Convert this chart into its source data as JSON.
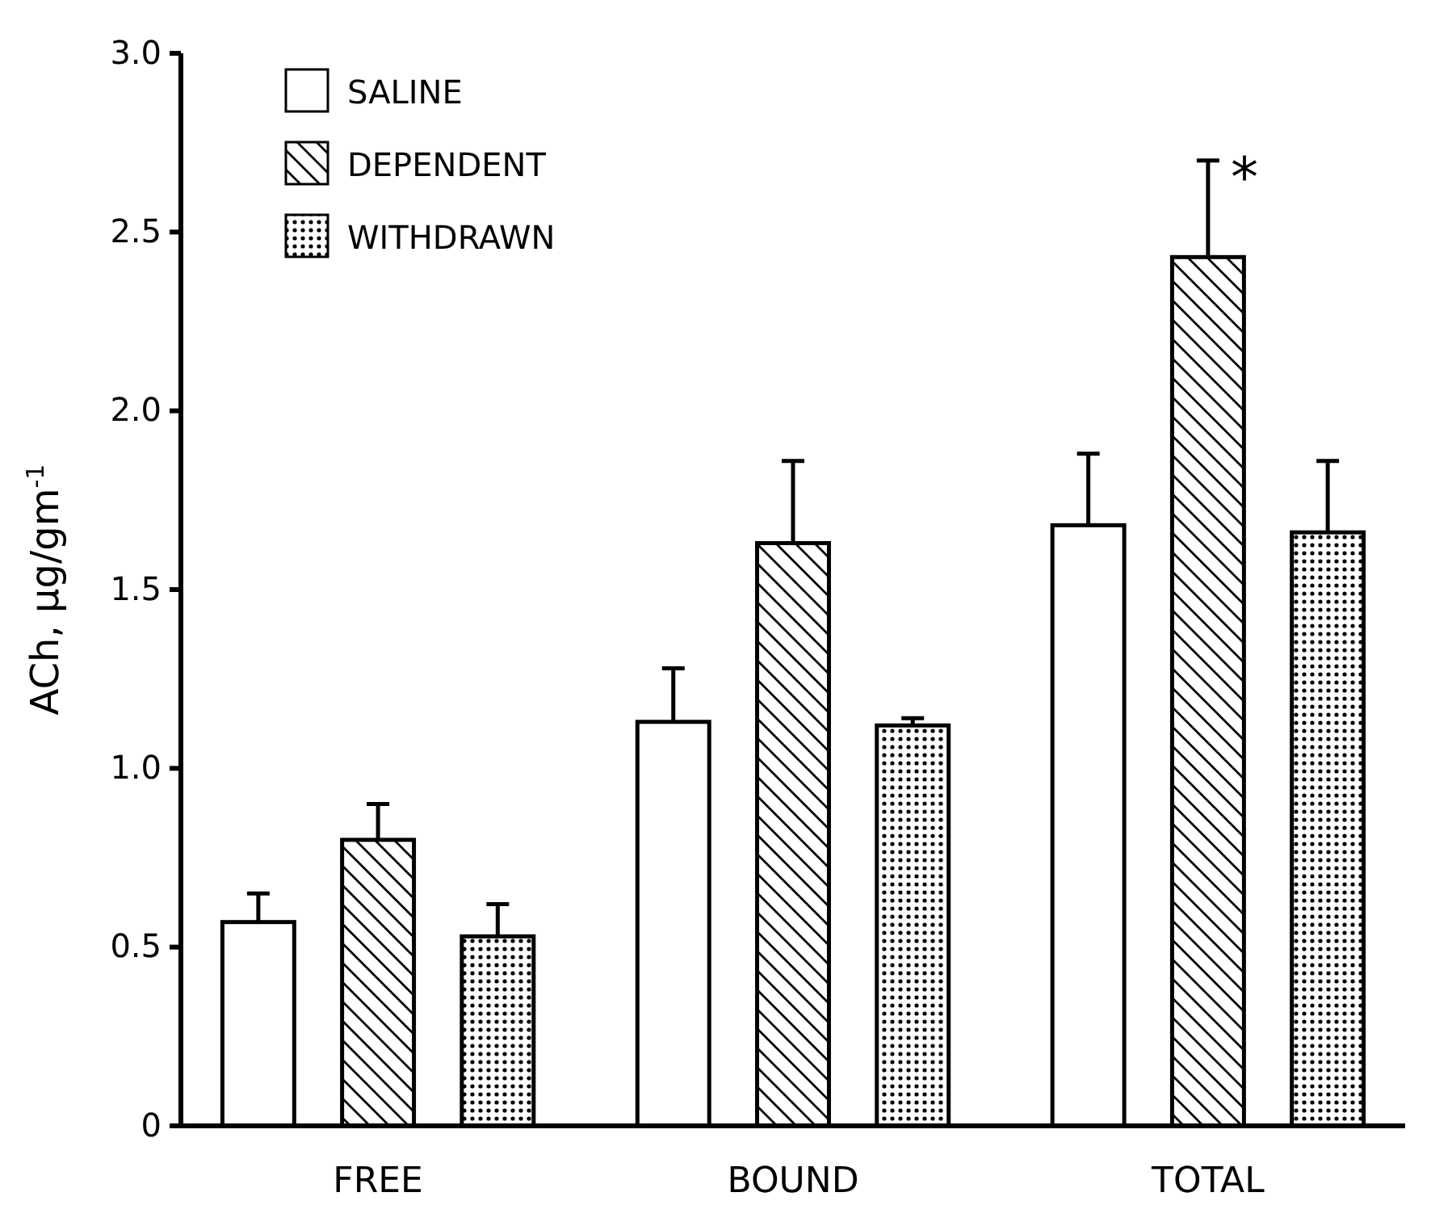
{
  "chart_data": {
    "type": "bar",
    "ylabel": "ACh, μg/gm$^{-1}$",
    "categories": [
      "FREE",
      "BOUND",
      "TOTAL"
    ],
    "series": [
      {
        "name": "SALINE",
        "color": "#ffffff",
        "values": [
          0.57,
          1.13,
          1.68
        ],
        "errors": [
          [
            0.57,
            0.65
          ],
          [
            1.13,
            1.28
          ],
          [
            1.68,
            1.88
          ]
        ]
      },
      {
        "name": "DEPENDENT",
        "color": "#000000",
        "values": [
          0.8,
          1.63,
          2.43
        ],
        "errors": [
          [
            0.8,
            0.9
          ],
          [
            1.63,
            1.86
          ],
          [
            2.43,
            2.7
          ]
        ]
      },
      {
        "name": "WITHDRAWN",
        "color": "#000000",
        "values": [
          0.53,
          1.12,
          1.66
        ],
        "errors": [
          [
            0.53,
            0.62
          ],
          [
            1.12,
            1.14
          ],
          [
            1.66,
            1.86
          ]
        ]
      }
    ],
    "ylim": [
      0,
      3.0
    ],
    "yticks": [
      {
        "value": 0,
        "label": "0"
      },
      0.5,
      {
        "value": 1,
        "label": "1.0"
      },
      1.5,
      {
        "value": 2,
        "label": "2.0"
      },
      2.5,
      {
        "value": 3,
        "label": "3.0"
      }
    ],
    "legend": "top left",
    "grid": false,
    "annotations": [
      {
        "text": "*",
        "x": "TOTAL",
        "y": 2.7
      }
    ]
  }
}
